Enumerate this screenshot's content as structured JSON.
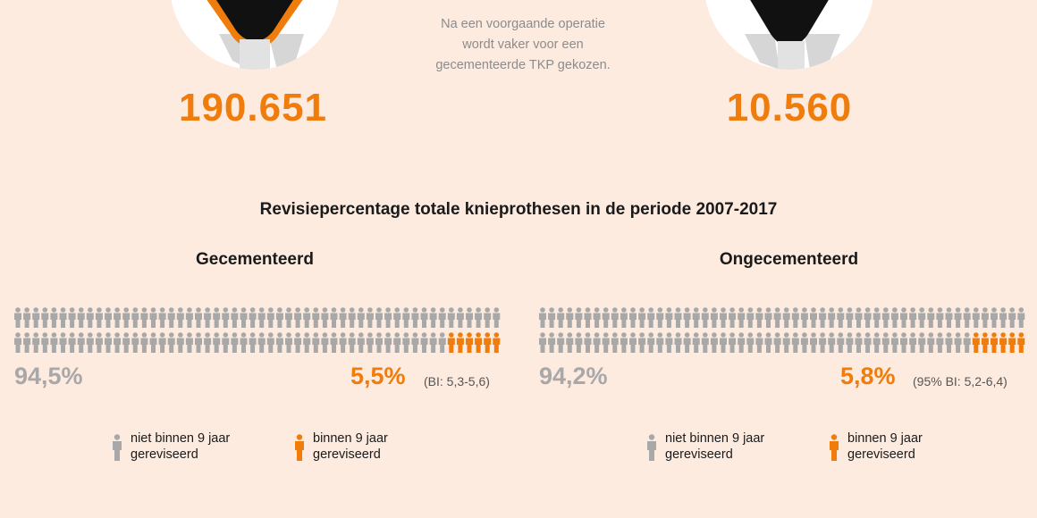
{
  "left_total": "190.651",
  "right_total": "10.560",
  "note_lines": [
    "Na een voorgaande operatie",
    "wordt vaker voor een",
    "gecementeerde TKP gekozen."
  ],
  "section_title": "Revisiepercentage totale knieprothesen in de periode 2007-2017",
  "panels": [
    {
      "title": "Gecementeerd",
      "not_revised_pct": "94,5%",
      "revised_pct": "5,5%",
      "ci": "(BI: 5,3-5,6)",
      "revised_figures": 6,
      "legend": {
        "not_revised_1": "niet binnen 9 jaar",
        "not_revised_2": "gereviseerd",
        "revised_1": "binnen 9 jaar",
        "revised_2": "gereviseerd"
      }
    },
    {
      "title": "Ongecementeerd",
      "not_revised_pct": "94,2%",
      "revised_pct": "5,8%",
      "ci": "(95% BI: 5,2-6,4)",
      "revised_figures": 6,
      "legend": {
        "not_revised_1": "niet binnen 9 jaar",
        "not_revised_2": "gereviseerd",
        "revised_1": "binnen 9 jaar",
        "revised_2": "gereviseerd"
      }
    }
  ],
  "colors": {
    "grey": "#a8a8a8",
    "orange": "#f07c0c",
    "background": "#fdebe0"
  }
}
